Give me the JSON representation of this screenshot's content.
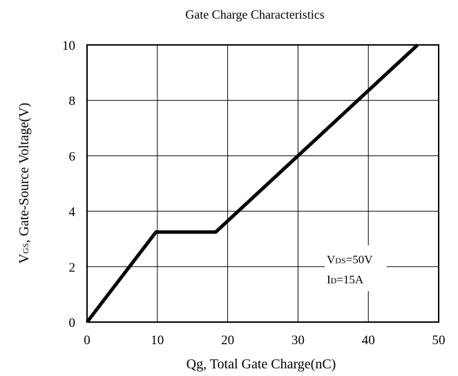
{
  "chart_data": {
    "type": "line",
    "title": "Gate Charge Characteristics",
    "xlabel": "Qg, Total Gate Charge(nC)",
    "ylabel": {
      "main": "V",
      "sub": "GS",
      "rest": ", Gate-Source Voltage(V)"
    },
    "xlim": [
      0,
      50
    ],
    "ylim": [
      0,
      10
    ],
    "xticks": [
      "0",
      "10",
      "20",
      "30",
      "40",
      "50"
    ],
    "yticks": [
      "0",
      "2",
      "4",
      "6",
      "8",
      "10"
    ],
    "grid": true,
    "series": [
      {
        "x": [
          0,
          9.8,
          18.3,
          47
        ],
        "y": [
          0,
          3.25,
          3.25,
          10
        ]
      }
    ],
    "annotations": [
      {
        "main": "V",
        "sub": "DS",
        "rest": "=50V"
      },
      {
        "main": "I",
        "sub": "D",
        "rest": "=15A"
      }
    ]
  }
}
